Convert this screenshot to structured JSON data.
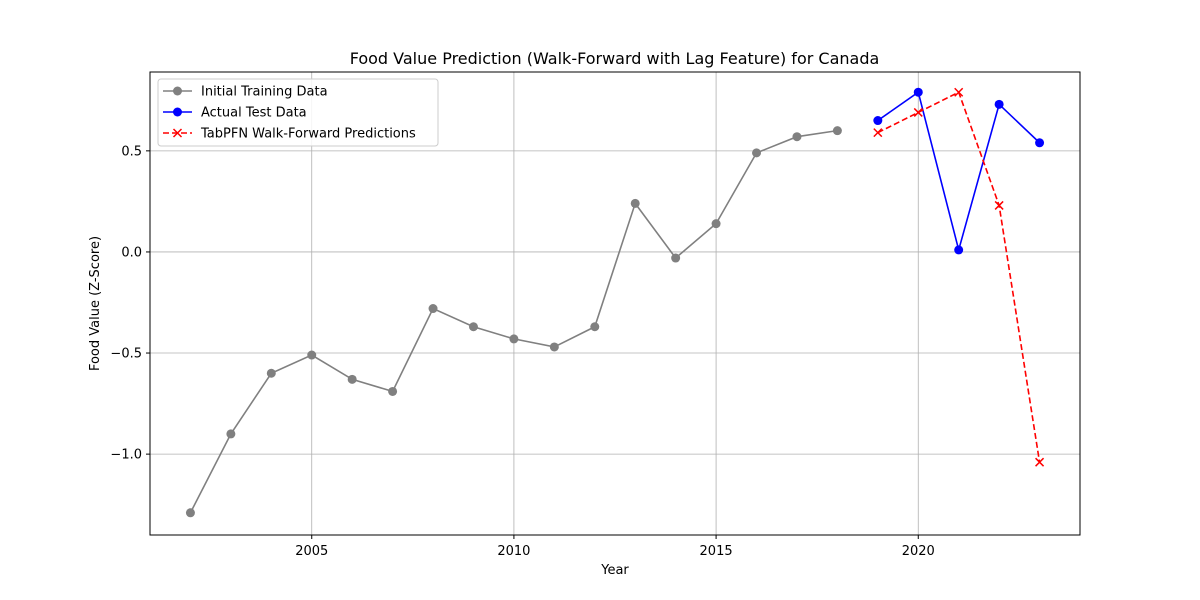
{
  "chart_data": {
    "type": "line",
    "title": "Food Value Prediction (Walk-Forward with Lag Feature) for Canada",
    "xlabel": "Year",
    "ylabel": "Food Value (Z-Score)",
    "xlim": [
      2001,
      2024
    ],
    "ylim": [
      -1.4,
      0.89
    ],
    "x_ticks": [
      2005,
      2010,
      2015,
      2020
    ],
    "y_ticks": [
      -1.0,
      -0.5,
      0.0,
      0.5
    ],
    "y_tick_labels": [
      "−1.0",
      "−0.5",
      "0.0",
      "0.5"
    ],
    "grid": true,
    "legend_position": "top-left",
    "series": [
      {
        "name": "Initial Training Data",
        "color": "#808080",
        "line_style": "solid",
        "marker": "circle",
        "x": [
          2002,
          2003,
          2004,
          2005,
          2006,
          2007,
          2008,
          2009,
          2010,
          2011,
          2012,
          2013,
          2014,
          2015,
          2016,
          2017,
          2018
        ],
        "y": [
          -1.29,
          -0.9,
          -0.6,
          -0.51,
          -0.63,
          -0.69,
          -0.28,
          -0.37,
          -0.43,
          -0.47,
          -0.37,
          0.24,
          -0.03,
          0.14,
          0.49,
          0.57,
          0.6
        ]
      },
      {
        "name": "Actual Test Data",
        "color": "#0000ff",
        "line_style": "solid",
        "marker": "circle",
        "x": [
          2019,
          2020,
          2021,
          2022,
          2023
        ],
        "y": [
          0.65,
          0.79,
          0.01,
          0.73,
          0.54
        ]
      },
      {
        "name": "TabPFN Walk-Forward Predictions",
        "color": "#ff0000",
        "line_style": "dashed",
        "marker": "x",
        "x": [
          2019,
          2020,
          2021,
          2022,
          2023
        ],
        "y": [
          0.59,
          0.69,
          0.79,
          0.23,
          -1.04
        ]
      }
    ]
  }
}
